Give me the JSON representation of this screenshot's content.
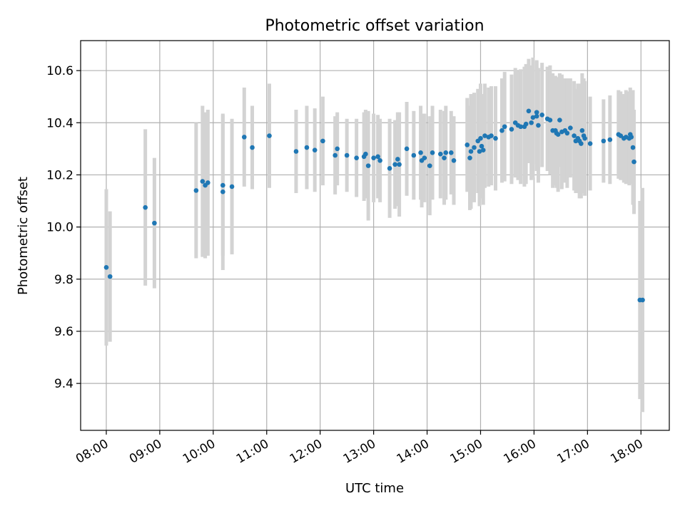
{
  "chart_data": {
    "type": "scatter",
    "title": "Photometric offset variation",
    "xlabel": "UTC time",
    "ylabel": "Photometric offset",
    "x_unit": "hours UTC",
    "xlim": [
      7.52,
      18.53
    ],
    "ylim": [
      9.22,
      10.715
    ],
    "x_ticks": [
      {
        "value": 8,
        "label": "08:00"
      },
      {
        "value": 9,
        "label": "09:00"
      },
      {
        "value": 10,
        "label": "10:00"
      },
      {
        "value": 11,
        "label": "11:00"
      },
      {
        "value": 12,
        "label": "12:00"
      },
      {
        "value": 13,
        "label": "13:00"
      },
      {
        "value": 14,
        "label": "14:00"
      },
      {
        "value": 15,
        "label": "15:00"
      },
      {
        "value": 16,
        "label": "16:00"
      },
      {
        "value": 17,
        "label": "17:00"
      },
      {
        "value": 18,
        "label": "18:00"
      }
    ],
    "y_ticks": [
      {
        "value": 9.4,
        "label": "9.4"
      },
      {
        "value": 9.6,
        "label": "9.6"
      },
      {
        "value": 9.8,
        "label": "9.8"
      },
      {
        "value": 10.0,
        "label": "10.0"
      },
      {
        "value": 10.2,
        "label": "10.2"
      },
      {
        "value": 10.4,
        "label": "10.4"
      },
      {
        "value": 10.6,
        "label": "10.6"
      }
    ],
    "grid": true,
    "point_color": "#1f77b4",
    "errorbar_color": "#d3d3d3",
    "points": [
      [
        8.0,
        9.845,
        0.3
      ],
      [
        8.07,
        9.81,
        0.25
      ],
      [
        8.73,
        10.075,
        0.3
      ],
      [
        8.9,
        10.015,
        0.25
      ],
      [
        9.68,
        10.14,
        0.26
      ],
      [
        9.8,
        10.175,
        0.29
      ],
      [
        9.85,
        10.16,
        0.28
      ],
      [
        9.9,
        10.17,
        0.28
      ],
      [
        10.18,
        10.135,
        0.3
      ],
      [
        10.18,
        10.16,
        0.27
      ],
      [
        10.35,
        10.155,
        0.26
      ],
      [
        10.58,
        10.345,
        0.19
      ],
      [
        10.73,
        10.305,
        0.16
      ],
      [
        11.05,
        10.35,
        0.2
      ],
      [
        11.55,
        10.29,
        0.16
      ],
      [
        11.75,
        10.305,
        0.16
      ],
      [
        11.9,
        10.295,
        0.16
      ],
      [
        12.05,
        10.33,
        0.17
      ],
      [
        12.28,
        10.275,
        0.15
      ],
      [
        12.32,
        10.3,
        0.14
      ],
      [
        12.5,
        10.275,
        0.14
      ],
      [
        12.68,
        10.265,
        0.15
      ],
      [
        12.82,
        10.27,
        0.17
      ],
      [
        12.85,
        10.28,
        0.17
      ],
      [
        12.9,
        10.235,
        0.21
      ],
      [
        13.0,
        10.265,
        0.17
      ],
      [
        13.08,
        10.27,
        0.16
      ],
      [
        13.12,
        10.255,
        0.16
      ],
      [
        13.3,
        10.225,
        0.19
      ],
      [
        13.4,
        10.24,
        0.17
      ],
      [
        13.45,
        10.26,
        0.18
      ],
      [
        13.48,
        10.24,
        0.2
      ],
      [
        13.62,
        10.3,
        0.18
      ],
      [
        13.75,
        10.275,
        0.17
      ],
      [
        13.88,
        10.285,
        0.18
      ],
      [
        13.9,
        10.255,
        0.18
      ],
      [
        13.95,
        10.265,
        0.17
      ],
      [
        14.05,
        10.235,
        0.19
      ],
      [
        14.1,
        10.285,
        0.18
      ],
      [
        14.25,
        10.28,
        0.17
      ],
      [
        14.32,
        10.265,
        0.18
      ],
      [
        14.35,
        10.285,
        0.18
      ],
      [
        14.45,
        10.285,
        0.16
      ],
      [
        14.5,
        10.255,
        0.17
      ],
      [
        14.75,
        10.315,
        0.18
      ],
      [
        14.8,
        10.265,
        0.2
      ],
      [
        14.82,
        10.29,
        0.22
      ],
      [
        14.88,
        10.305,
        0.21
      ],
      [
        14.95,
        10.33,
        0.2
      ],
      [
        14.98,
        10.29,
        0.21
      ],
      [
        15.0,
        10.34,
        0.21
      ],
      [
        15.02,
        10.31,
        0.2
      ],
      [
        15.05,
        10.295,
        0.21
      ],
      [
        15.08,
        10.35,
        0.2
      ],
      [
        15.15,
        10.345,
        0.19
      ],
      [
        15.2,
        10.35,
        0.19
      ],
      [
        15.28,
        10.34,
        0.2
      ],
      [
        15.4,
        10.37,
        0.2
      ],
      [
        15.45,
        10.385,
        0.21
      ],
      [
        15.58,
        10.375,
        0.21
      ],
      [
        15.65,
        10.4,
        0.21
      ],
      [
        15.7,
        10.39,
        0.21
      ],
      [
        15.75,
        10.385,
        0.22
      ],
      [
        15.82,
        10.385,
        0.23
      ],
      [
        15.85,
        10.395,
        0.23
      ],
      [
        15.9,
        10.445,
        0.2
      ],
      [
        15.95,
        10.4,
        0.22
      ],
      [
        15.98,
        10.42,
        0.23
      ],
      [
        16.05,
        10.44,
        0.2
      ],
      [
        16.05,
        10.425,
        0.21
      ],
      [
        16.08,
        10.39,
        0.22
      ],
      [
        16.15,
        10.43,
        0.2
      ],
      [
        16.25,
        10.415,
        0.2
      ],
      [
        16.3,
        10.41,
        0.21
      ],
      [
        16.35,
        10.37,
        0.22
      ],
      [
        16.4,
        10.37,
        0.21
      ],
      [
        16.42,
        10.36,
        0.21
      ],
      [
        16.45,
        10.355,
        0.22
      ],
      [
        16.48,
        10.41,
        0.18
      ],
      [
        16.52,
        10.365,
        0.22
      ],
      [
        16.58,
        10.37,
        0.2
      ],
      [
        16.62,
        10.36,
        0.21
      ],
      [
        16.68,
        10.38,
        0.19
      ],
      [
        16.75,
        10.35,
        0.21
      ],
      [
        16.78,
        10.33,
        0.2
      ],
      [
        16.82,
        10.34,
        0.21
      ],
      [
        16.85,
        10.33,
        0.22
      ],
      [
        16.88,
        10.32,
        0.21
      ],
      [
        16.9,
        10.37,
        0.22
      ],
      [
        16.93,
        10.35,
        0.22
      ],
      [
        16.95,
        10.34,
        0.22
      ],
      [
        17.05,
        10.32,
        0.18
      ],
      [
        17.3,
        10.33,
        0.16
      ],
      [
        17.42,
        10.335,
        0.17
      ],
      [
        17.58,
        10.355,
        0.17
      ],
      [
        17.62,
        10.35,
        0.17
      ],
      [
        17.68,
        10.34,
        0.17
      ],
      [
        17.72,
        10.345,
        0.18
      ],
      [
        17.78,
        10.34,
        0.18
      ],
      [
        17.8,
        10.355,
        0.18
      ],
      [
        17.82,
        10.345,
        0.18
      ],
      [
        17.85,
        10.305,
        0.22
      ],
      [
        17.87,
        10.25,
        0.2
      ],
      [
        17.98,
        9.72,
        0.38
      ],
      [
        18.03,
        9.72,
        0.43
      ]
    ]
  }
}
